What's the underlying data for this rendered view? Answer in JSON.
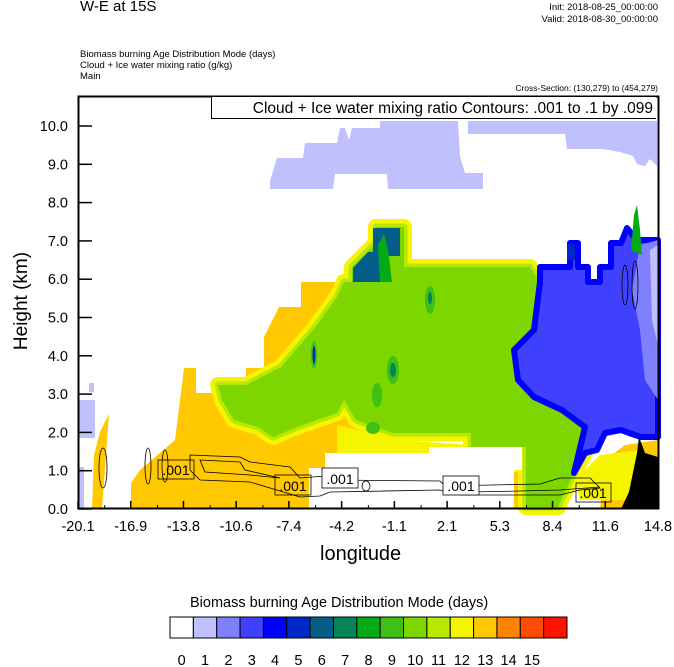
{
  "header": {
    "title": "W-E at 15S",
    "init": "Init: 2018-08-25_00:00:00",
    "valid": "Valid: 2018-08-30_00:00:00",
    "subtitles": [
      "Biomass burning Age Distribution Mode   (days)",
      "Cloud + Ice water mixing ratio   (g/kg)",
      "Main"
    ],
    "cross_section": "Cross-Section: (130,279) to (454,279)"
  },
  "chart_data": {
    "type": "heatmap",
    "title": "W-E at 15S",
    "contour_title": "Cloud + Ice water mixing ratio Contours: .001 to .1 by .099",
    "xlabel": "longitude",
    "ylabel": "Height (km)",
    "xticks": [
      "-20.1",
      "-16.9",
      "-13.8",
      "-10.6",
      "-7.4",
      "-4.2",
      "-1.1",
      "2.1",
      "5.3",
      "8.4",
      "11.6",
      "14.8"
    ],
    "yticks": [
      "0.0",
      "1.0",
      "2.0",
      "3.0",
      "4.0",
      "5.0",
      "6.0",
      "7.0",
      "8.0",
      "9.0",
      "10.0"
    ],
    "xlim": [
      -20.1,
      14.8
    ],
    "ylim": [
      0,
      10.8
    ],
    "contour_labels": [
      ".001",
      ".001",
      ".001",
      ".001",
      ".001"
    ],
    "colorbar": {
      "title": "Biomass burning Age Distribution Mode  (days)",
      "labels": [
        "0",
        "1",
        "2",
        "3",
        "4",
        "5",
        "6",
        "7",
        "8",
        "9",
        "10",
        "11",
        "12",
        "13",
        "14",
        "15"
      ],
      "colors": [
        "#ffffff",
        "#c0c0ff",
        "#8080ff",
        "#4040ff",
        "#0000ff",
        "#0028c8",
        "#055e87",
        "#058555",
        "#05ab14",
        "#3ec014",
        "#7dd600",
        "#b9e800",
        "#f5f500",
        "#ffc800",
        "#ff8200",
        "#ff4b00",
        "#ff1400"
      ]
    }
  }
}
